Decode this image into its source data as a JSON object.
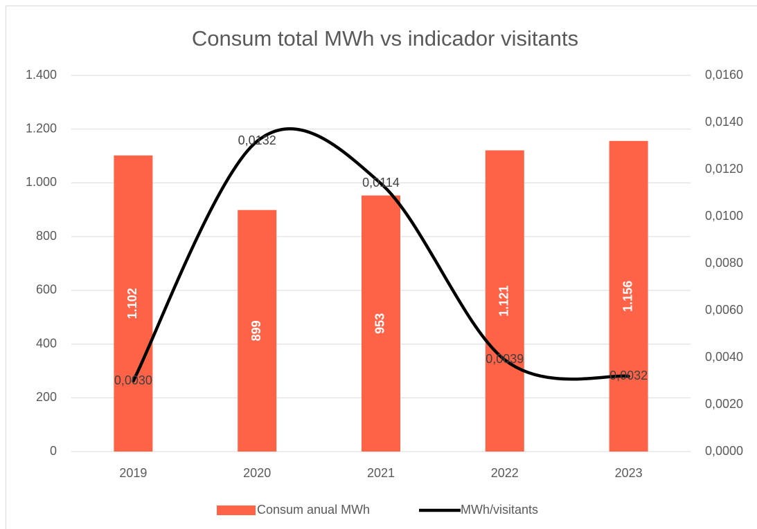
{
  "chart_data": {
    "type": "bar",
    "title": "Consum total MWh vs indicador visitants",
    "categories": [
      "2019",
      "2020",
      "2021",
      "2022",
      "2023"
    ],
    "series": [
      {
        "name": "Consum anual MWh",
        "type": "bar",
        "color": "#ff6347",
        "values": [
          1102,
          899,
          953,
          1121,
          1156
        ],
        "value_labels": [
          "1.102",
          "899",
          "953",
          "1.121",
          "1.156"
        ]
      },
      {
        "name": "MWh/visitants",
        "type": "line",
        "axis": "y2",
        "smooth": true,
        "color": "#000000",
        "values": [
          0.003,
          0.0132,
          0.0114,
          0.0039,
          0.0032
        ],
        "value_labels": [
          "0,0030",
          "0,0132",
          "0,0114",
          "0,0039",
          "0,0032"
        ]
      }
    ],
    "ylim": [
      0,
      1400
    ],
    "yticks": [
      0,
      200,
      400,
      600,
      800,
      {
        "value": 1000,
        "label": "1.000"
      },
      {
        "value": 1200,
        "label": "1.200"
      },
      {
        "value": 1400,
        "label": "1.400"
      }
    ],
    "y2lim": [
      0,
      0.016
    ],
    "y2ticks": [
      {
        "value": 0,
        "label": "0,0000"
      },
      {
        "value": 0.002,
        "label": "0,0020"
      },
      {
        "value": 0.004,
        "label": "0,0040"
      },
      {
        "value": 0.006,
        "label": "0,0060"
      },
      {
        "value": 0.008,
        "label": "0,0080"
      },
      {
        "value": 0.01,
        "label": "0,0100"
      },
      {
        "value": 0.012,
        "label": "0,0120"
      },
      {
        "value": 0.014,
        "label": "0,0140"
      },
      {
        "value": 0.016,
        "label": "0,0160"
      }
    ],
    "grid": true,
    "legend": "bottom"
  }
}
